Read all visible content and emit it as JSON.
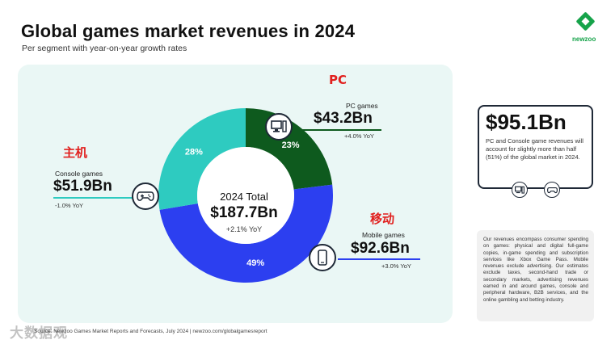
{
  "header": {
    "title": "Global games market revenues in 2024",
    "subtitle": "Per segment with year-on-year growth rates"
  },
  "logo": {
    "text": "newzoo",
    "color": "#16a34a"
  },
  "annotations_cn": {
    "pc": "PC",
    "console": "主机",
    "mobile": "移动"
  },
  "segments": {
    "pc": {
      "name": "PC games",
      "value": "$43.2Bn",
      "yoy": "+4.0% YoY",
      "share": "23%",
      "color": "#0e5a1e",
      "icon": "desktop-computer-icon"
    },
    "console": {
      "name": "Console games",
      "value": "$51.9Bn",
      "yoy": "-1.0% YoY",
      "share": "28%",
      "color": "#2ecbc0",
      "icon": "gamepad-icon"
    },
    "mobile": {
      "name": "Mobile games",
      "value": "$92.6Bn",
      "yoy": "+3.0% YoY",
      "share": "49%",
      "color": "#2c3ff0",
      "icon": "smartphone-icon"
    }
  },
  "center": {
    "label": "2024 Total",
    "total": "$187.7Bn",
    "yoy": "+2.1% YoY"
  },
  "callout": {
    "value": "$95.1Bn",
    "text": "PC and Console game revenues will account for slightly more than half (51%) of the global market in 2024.",
    "icons": [
      "desktop-computer-icon",
      "gamepad-icon"
    ]
  },
  "note": "Our revenues encompass consumer spending on games: physical and digital full-game copies, in-game spending and subscription services like Xbox Game Pass. Mobile revenues exclude advertising. Our estimates exclude taxes, second-hand trade or secondary markets, advertising revenues earned in and around games, console and peripheral hardware, B2B services, and the online gambling and betting industry.",
  "footer": {
    "source": "Source: Newzoo Games Market Reports and Forecasts, July 2024 | newzoo.com/globalgamesreport",
    "watermark": "大数据观"
  },
  "chart_data": {
    "type": "pie",
    "title": "Global games market revenues in 2024",
    "subtitle": "Per segment with year-on-year growth rates",
    "categories": [
      "PC games",
      "Mobile games",
      "Console games"
    ],
    "values": [
      43.2,
      92.6,
      51.9
    ],
    "shares_percent": [
      23,
      49,
      28
    ],
    "yoy": [
      "+4.0% YoY",
      "+3.0% YoY",
      "-1.0% YoY"
    ],
    "colors": [
      "#0e5a1e",
      "#2c3ff0",
      "#2ecbc0"
    ],
    "total": 187.7
  }
}
